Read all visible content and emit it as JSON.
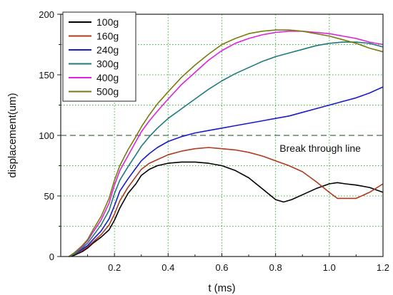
{
  "chart_data": {
    "type": "line",
    "title": "",
    "xlabel": "t (ms)",
    "ylabel": "displacement(um)",
    "xlim": [
      0,
      1.2
    ],
    "ylim": [
      0,
      200
    ],
    "xticks": [
      0.2,
      0.4,
      0.6,
      0.8,
      1.0,
      1.2
    ],
    "xtick_labels": [
      "0.2",
      "0.4",
      "0.6",
      "0.8",
      "1.0",
      "1.2"
    ],
    "yticks": [
      0,
      50,
      100,
      150,
      200
    ],
    "ytick_labels": [
      "0",
      "50",
      "100",
      "150",
      "200"
    ],
    "grid": "dotted-green",
    "legend_position": "top-left",
    "reference_line": {
      "y": 100,
      "label": "Break through  line",
      "color": "#4a6a4a"
    },
    "series": [
      {
        "name": "100g",
        "color": "#000000",
        "x": [
          0.03,
          0.05,
          0.08,
          0.1,
          0.12,
          0.15,
          0.18,
          0.2,
          0.22,
          0.25,
          0.28,
          0.3,
          0.33,
          0.36,
          0.4,
          0.45,
          0.5,
          0.55,
          0.6,
          0.65,
          0.7,
          0.75,
          0.8,
          0.83,
          0.86,
          0.9,
          0.95,
          1.0,
          1.03,
          1.06,
          1.1,
          1.15,
          1.2
        ],
        "y": [
          0,
          1,
          4,
          7,
          11,
          16,
          22,
          30,
          40,
          52,
          60,
          67,
          72,
          75,
          77,
          78,
          78,
          77,
          75,
          71,
          65,
          56,
          47,
          45,
          47,
          51,
          56,
          60,
          61,
          60,
          59,
          57,
          53
        ]
      },
      {
        "name": "160g",
        "color": "#b03a1e",
        "x": [
          0.03,
          0.05,
          0.08,
          0.1,
          0.12,
          0.15,
          0.18,
          0.2,
          0.22,
          0.25,
          0.28,
          0.3,
          0.33,
          0.36,
          0.4,
          0.45,
          0.5,
          0.55,
          0.6,
          0.65,
          0.7,
          0.75,
          0.8,
          0.85,
          0.9,
          0.95,
          1.0,
          1.03,
          1.06,
          1.1,
          1.15,
          1.2
        ],
        "y": [
          0,
          2,
          5,
          8,
          12,
          18,
          26,
          35,
          46,
          57,
          66,
          72,
          77,
          80,
          84,
          87,
          89,
          90,
          89,
          88,
          86,
          83,
          79,
          75,
          70,
          62,
          53,
          48,
          48,
          48,
          53,
          60
        ]
      },
      {
        "name": "240g",
        "color": "#1a1acc",
        "x": [
          0.03,
          0.05,
          0.08,
          0.1,
          0.12,
          0.15,
          0.18,
          0.2,
          0.22,
          0.25,
          0.28,
          0.3,
          0.33,
          0.36,
          0.4,
          0.45,
          0.5,
          0.55,
          0.6,
          0.65,
          0.7,
          0.75,
          0.8,
          0.85,
          0.9,
          0.95,
          1.0,
          1.05,
          1.1,
          1.15,
          1.2
        ],
        "y": [
          0,
          2,
          6,
          9,
          14,
          21,
          31,
          42,
          54,
          64,
          73,
          79,
          85,
          90,
          95,
          99,
          102,
          104,
          106,
          108,
          110,
          112,
          114,
          116,
          119,
          122,
          125,
          128,
          131,
          135,
          140
        ]
      },
      {
        "name": "300g",
        "color": "#1f7a7a",
        "x": [
          0.03,
          0.05,
          0.08,
          0.1,
          0.12,
          0.15,
          0.18,
          0.2,
          0.22,
          0.25,
          0.28,
          0.3,
          0.33,
          0.36,
          0.4,
          0.45,
          0.5,
          0.55,
          0.6,
          0.65,
          0.7,
          0.75,
          0.8,
          0.85,
          0.9,
          0.95,
          1.0,
          1.05,
          1.1,
          1.15,
          1.2
        ],
        "y": [
          0,
          2,
          7,
          11,
          17,
          26,
          38,
          52,
          63,
          74,
          84,
          91,
          99,
          106,
          114,
          122,
          130,
          138,
          145,
          151,
          156,
          161,
          165,
          168,
          171,
          174,
          176,
          177,
          177,
          176,
          173
        ]
      },
      {
        "name": "400g",
        "color": "#dd22dd",
        "x": [
          0.03,
          0.05,
          0.08,
          0.1,
          0.12,
          0.15,
          0.18,
          0.2,
          0.22,
          0.25,
          0.28,
          0.3,
          0.33,
          0.36,
          0.4,
          0.45,
          0.5,
          0.55,
          0.6,
          0.65,
          0.7,
          0.75,
          0.8,
          0.85,
          0.9,
          0.95,
          1.0,
          1.05,
          1.1,
          1.15,
          1.2
        ],
        "y": [
          0,
          3,
          8,
          13,
          20,
          30,
          44,
          59,
          71,
          83,
          95,
          103,
          112,
          120,
          130,
          142,
          152,
          162,
          170,
          176,
          180,
          183,
          185,
          186,
          186,
          185,
          184,
          182,
          180,
          177,
          175
        ]
      },
      {
        "name": "500g",
        "color": "#7a7a10",
        "x": [
          0.03,
          0.05,
          0.08,
          0.1,
          0.12,
          0.15,
          0.18,
          0.2,
          0.22,
          0.25,
          0.28,
          0.3,
          0.33,
          0.36,
          0.4,
          0.45,
          0.5,
          0.55,
          0.6,
          0.65,
          0.7,
          0.75,
          0.8,
          0.85,
          0.9,
          0.95,
          1.0,
          1.05,
          1.1,
          1.15,
          1.2
        ],
        "y": [
          0,
          3,
          9,
          14,
          22,
          33,
          48,
          63,
          75,
          88,
          99,
          107,
          117,
          126,
          136,
          148,
          158,
          167,
          175,
          180,
          184,
          186,
          187,
          187,
          186,
          184,
          182,
          179,
          176,
          172,
          169
        ]
      }
    ]
  }
}
